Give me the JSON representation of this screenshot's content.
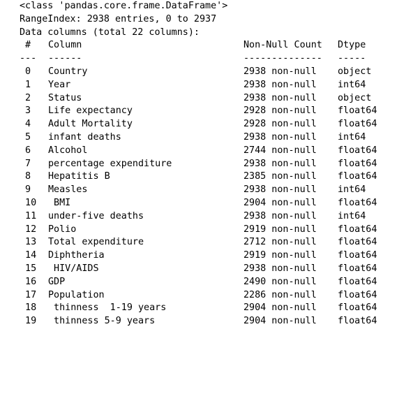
{
  "header": {
    "class_line": "<class 'pandas.core.frame.DataFrame'>",
    "range_index": "RangeIndex: 2938 entries, 0 to 2937",
    "data_columns": "Data columns (total 22 columns):"
  },
  "table": {
    "headers": {
      "num": " #",
      "column": "Column",
      "count": "Non-Null Count",
      "dtype": "Dtype"
    },
    "separators": {
      "num": "---",
      "column": "------",
      "count": "--------------",
      "dtype": "-----"
    },
    "rows": [
      {
        "num": " 0",
        "column": "Country",
        "count": "2938 non-null",
        "dtype": "object"
      },
      {
        "num": " 1",
        "column": "Year",
        "count": "2938 non-null",
        "dtype": "int64"
      },
      {
        "num": " 2",
        "column": "Status",
        "count": "2938 non-null",
        "dtype": "object"
      },
      {
        "num": " 3",
        "column": "Life expectancy ",
        "count": "2928 non-null",
        "dtype": "float64"
      },
      {
        "num": " 4",
        "column": "Adult Mortality",
        "count": "2928 non-null",
        "dtype": "float64"
      },
      {
        "num": " 5",
        "column": "infant deaths",
        "count": "2938 non-null",
        "dtype": "int64"
      },
      {
        "num": " 6",
        "column": "Alcohol",
        "count": "2744 non-null",
        "dtype": "float64"
      },
      {
        "num": " 7",
        "column": "percentage expenditure",
        "count": "2938 non-null",
        "dtype": "float64"
      },
      {
        "num": " 8",
        "column": "Hepatitis B",
        "count": "2385 non-null",
        "dtype": "float64"
      },
      {
        "num": " 9",
        "column": "Measles ",
        "count": "2938 non-null",
        "dtype": "int64"
      },
      {
        "num": " 10",
        "column": " BMI ",
        "count": "2904 non-null",
        "dtype": "float64"
      },
      {
        "num": " 11",
        "column": "under-five deaths ",
        "count": "2938 non-null",
        "dtype": "int64"
      },
      {
        "num": " 12",
        "column": "Polio",
        "count": "2919 non-null",
        "dtype": "float64"
      },
      {
        "num": " 13",
        "column": "Total expenditure",
        "count": "2712 non-null",
        "dtype": "float64"
      },
      {
        "num": " 14",
        "column": "Diphtheria ",
        "count": "2919 non-null",
        "dtype": "float64"
      },
      {
        "num": " 15",
        "column": " HIV/AIDS",
        "count": "2938 non-null",
        "dtype": "float64"
      },
      {
        "num": " 16",
        "column": "GDP",
        "count": "2490 non-null",
        "dtype": "float64"
      },
      {
        "num": " 17",
        "column": "Population",
        "count": "2286 non-null",
        "dtype": "float64"
      },
      {
        "num": " 18",
        "column": " thinness  1-19 years",
        "count": "2904 non-null",
        "dtype": "float64"
      },
      {
        "num": " 19",
        "column": " thinness 5-9 years",
        "count": "2904 non-null",
        "dtype": "float64"
      }
    ]
  }
}
